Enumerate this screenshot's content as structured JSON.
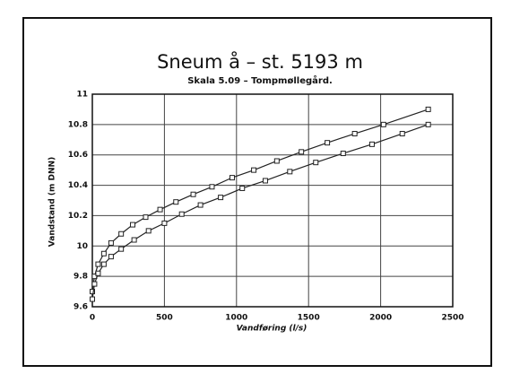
{
  "chart_data": {
    "type": "scatter",
    "title": "Sneum å – st. 5193 m",
    "subtitle": "Skala 5.09 – Tompmøllegård.",
    "x_label": "Vandføring (l/s)",
    "y_label": "Vandstand (m DNN)",
    "xlim": [
      0,
      2500
    ],
    "xticks": [
      0,
      500,
      1000,
      1500,
      2000,
      2500
    ],
    "ylim": [
      9.6,
      11
    ],
    "yticks": [
      9.6,
      9.8,
      10,
      10.2,
      10.4,
      10.6,
      10.8,
      11
    ],
    "grid": true,
    "series": [
      {
        "color": "#222222",
        "x": [
          0,
          15,
          40,
          80,
          130,
          200,
          280,
          370,
          470,
          580,
          700,
          830,
          970,
          1120,
          1280,
          1450,
          1630,
          1820,
          2020,
          2330
        ],
        "values": [
          9.7,
          9.8,
          9.88,
          9.95,
          10.02,
          10.08,
          10.14,
          10.19,
          10.24,
          10.29,
          10.34,
          10.39,
          10.45,
          10.5,
          10.56,
          10.62,
          10.68,
          10.74,
          10.8,
          10.9
        ]
      },
      {
        "color": "#222222",
        "x": [
          0,
          15,
          40,
          80,
          130,
          200,
          290,
          390,
          500,
          620,
          750,
          890,
          1040,
          1200,
          1370,
          1550,
          1740,
          1940,
          2150,
          2330
        ],
        "values": [
          9.65,
          9.75,
          9.82,
          9.88,
          9.93,
          9.98,
          10.04,
          10.1,
          10.15,
          10.21,
          10.27,
          10.32,
          10.38,
          10.43,
          10.49,
          10.55,
          10.61,
          10.67,
          10.74,
          10.8
        ]
      }
    ]
  }
}
